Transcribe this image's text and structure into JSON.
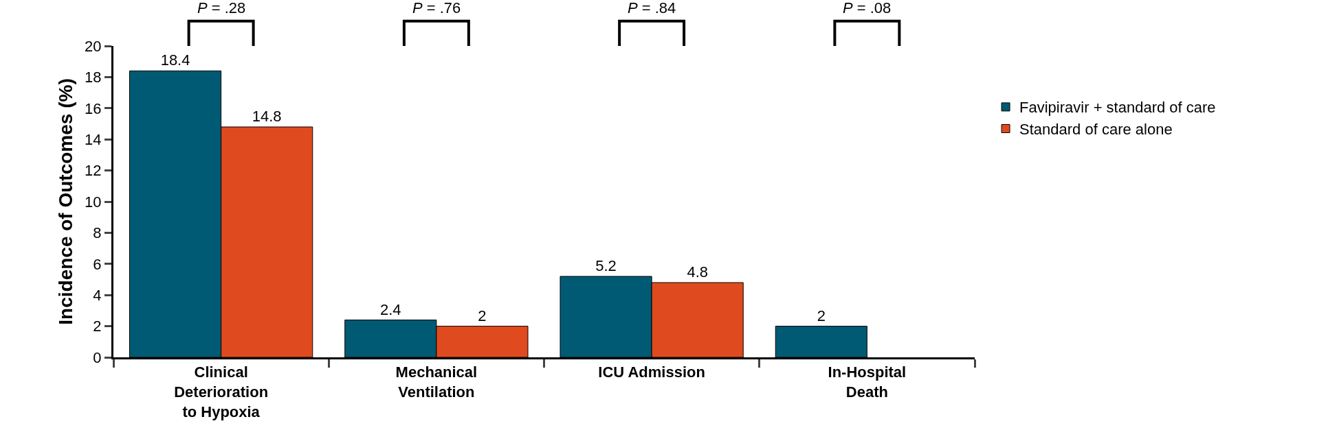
{
  "chart_data": {
    "type": "bar",
    "ylabel": "Incidence of Outcomes (%)",
    "categories": [
      "Clinical Deterioration to Hypoxia",
      "Mechanical Ventilation",
      "ICU Admission",
      "In-Hospital Death"
    ],
    "series": [
      {
        "name": "Favipiravir + standard of care",
        "color": "#005a73",
        "values": [
          18.4,
          2.4,
          5.2,
          2
        ]
      },
      {
        "name": "Standard of care alone",
        "color": "#e04a1f",
        "values": [
          14.8,
          2,
          4.8,
          null
        ]
      }
    ],
    "ylim": [
      0,
      20
    ],
    "yticks": [
      0,
      2,
      4,
      6,
      8,
      10,
      12,
      14,
      16,
      18,
      20
    ],
    "data_labels": true,
    "grid": false,
    "legend": "right",
    "annotations": [
      "P = .28",
      "P = .76",
      "P = .84",
      "P = .08"
    ]
  }
}
